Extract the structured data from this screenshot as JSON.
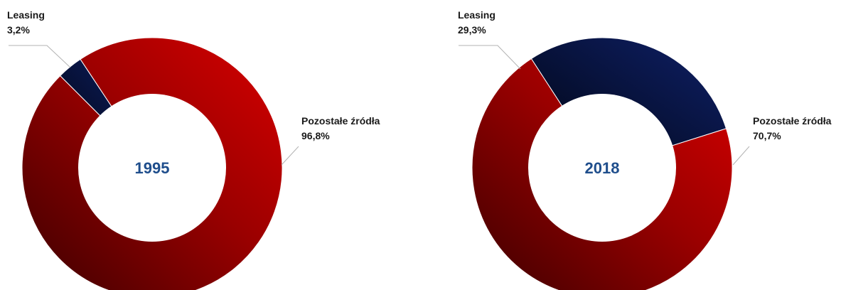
{
  "chart_data": [
    {
      "type": "pie",
      "variant": "donut",
      "center_label": "1995",
      "slices": [
        {
          "label": "Leasing",
          "value_label": "3,2%",
          "value": 3.2,
          "color": "#0d1b4c"
        },
        {
          "label": "Pozostałe źródła",
          "value_label": "96,8%",
          "value": 96.8,
          "color": "#c00000"
        }
      ]
    },
    {
      "type": "pie",
      "variant": "donut",
      "center_label": "2018",
      "slices": [
        {
          "label": "Leasing",
          "value_label": "29,3%",
          "value": 29.3,
          "color": "#0d1b4c"
        },
        {
          "label": "Pozostałe źródła",
          "value_label": "70,7%",
          "value": 70.7,
          "color": "#c00000"
        }
      ]
    }
  ],
  "colors": {
    "leasing_dark": "#000814",
    "leasing_light": "#0d1d5e",
    "other_dark": "#3a0000",
    "other_light": "#d40000",
    "center_text": "#1f4e8c"
  }
}
